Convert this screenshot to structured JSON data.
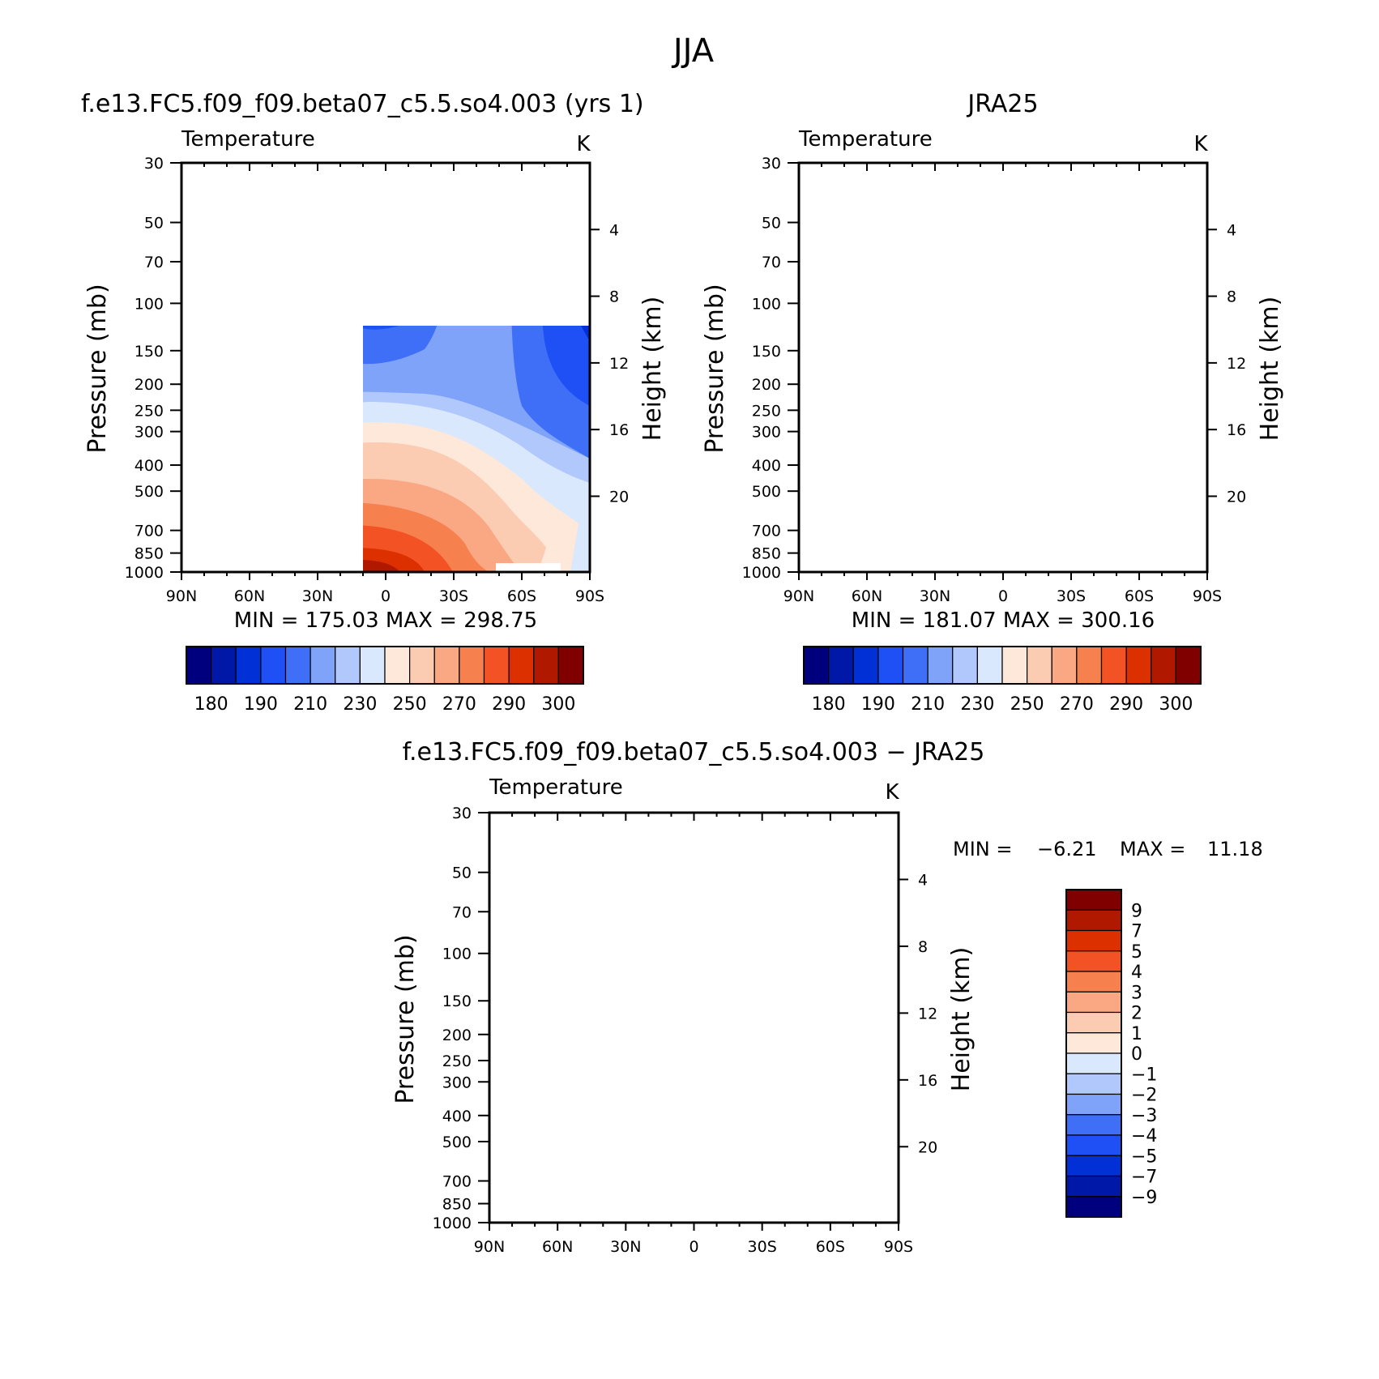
{
  "figure": {
    "title": "JJA",
    "panel_top_left": {
      "title": "f.e13.FC5.f09_f09.beta07_c5.5.so4.003 (yrs 1)"
    },
    "panel_top_right": {
      "title": "JRA25"
    },
    "panel_bottom": {
      "title": "f.e13.FC5.f09_f09.beta07_c5.5.so4.003 − JRA25"
    }
  },
  "colors": {
    "temperature_scale": [
      "#00007f",
      "#0018a8",
      "#0030d6",
      "#1f50f5",
      "#3f6ff7",
      "#7fa3f9",
      "#b0c8fb",
      "#d9e8fd",
      "#fde8d9",
      "#fbcbb2",
      "#f9a883",
      "#f7804f",
      "#f35225",
      "#dc3000",
      "#b01800",
      "#800000"
    ],
    "difference_scale": [
      "#00007f",
      "#0018a8",
      "#0030d6",
      "#1f50f5",
      "#3f6ff7",
      "#7fa3f9",
      "#b0c8fb",
      "#d9e8fd",
      "#fde8d9",
      "#fbcbb2",
      "#f9a883",
      "#f7804f",
      "#f35225",
      "#dc3000",
      "#b01800",
      "#800000"
    ]
  },
  "chart_data": [
    {
      "type": "heatmap",
      "panel": "model",
      "title": "f.e13.FC5.f09_f09.beta07_c5.5.so4.003 (yrs 1)",
      "subtitle_left": "Temperature",
      "units": "K",
      "ylabel": "Pressure (mb)",
      "ylabel_right": "Height (km)",
      "x_ticks": [
        "90N",
        "60N",
        "30N",
        "0",
        "30S",
        "60S",
        "90S"
      ],
      "y_ticks": [
        "30",
        "50",
        "70",
        "100",
        "150",
        "200",
        "250",
        "300",
        "400",
        "500",
        "700",
        "850",
        "1000"
      ],
      "y_right_ticks": [
        "20",
        "16",
        "12",
        "8",
        "4"
      ],
      "stats": "MIN = 175.03 MAX = 298.75",
      "min": 175.03,
      "max": 298.75,
      "colorbar_labels": [
        "180",
        "190",
        "210",
        "230",
        "250",
        "270",
        "290",
        "300"
      ],
      "contour_levels": [
        180,
        185,
        190,
        200,
        210,
        220,
        230,
        240,
        250,
        260,
        270,
        280,
        290,
        295,
        300
      ],
      "grid": false
    },
    {
      "type": "heatmap",
      "panel": "reanalysis",
      "title": "JRA25",
      "subtitle_left": "Temperature",
      "units": "K",
      "ylabel": "Pressure (mb)",
      "ylabel_right": "Height (km)",
      "x_ticks": [
        "90N",
        "60N",
        "30N",
        "0",
        "30S",
        "60S",
        "90S"
      ],
      "y_ticks": [
        "30",
        "50",
        "70",
        "100",
        "150",
        "200",
        "250",
        "300",
        "400",
        "500",
        "700",
        "850",
        "1000"
      ],
      "y_right_ticks": [
        "20",
        "16",
        "12",
        "8",
        "4"
      ],
      "stats": "MIN = 181.07 MAX = 300.16",
      "min": 181.07,
      "max": 300.16,
      "colorbar_labels": [
        "180",
        "190",
        "210",
        "230",
        "250",
        "270",
        "290",
        "300"
      ],
      "contour_levels": [
        180,
        185,
        190,
        200,
        210,
        220,
        230,
        240,
        250,
        260,
        270,
        280,
        290,
        295,
        300
      ],
      "grid": false
    },
    {
      "type": "heatmap",
      "panel": "difference",
      "title": "f.e13.FC5.f09_f09.beta07_c5.5.so4.003 − JRA25",
      "subtitle_left": "Temperature",
      "units": "K",
      "ylabel": "Pressure (mb)",
      "ylabel_right": "Height (km)",
      "x_ticks": [
        "90N",
        "60N",
        "30N",
        "0",
        "30S",
        "60S",
        "90S"
      ],
      "y_ticks": [
        "30",
        "50",
        "70",
        "100",
        "150",
        "200",
        "250",
        "300",
        "400",
        "500",
        "700",
        "850",
        "1000"
      ],
      "y_right_ticks": [
        "20",
        "16",
        "12",
        "8",
        "4"
      ],
      "stats_min_label": "MIN =",
      "stats_min_value": "−6.21",
      "stats_max_label": "MAX =",
      "stats_max_value": "11.18",
      "min": -6.21,
      "max": 11.18,
      "colorbar_labels": [
        "9",
        "7",
        "5",
        "4",
        "3",
        "2",
        "1",
        "0",
        "−1",
        "−2",
        "−3",
        "−4",
        "−5",
        "−7",
        "−9"
      ],
      "contour_levels": [
        -9,
        -7,
        -5,
        -4,
        -3,
        -2,
        -1,
        0,
        1,
        2,
        3,
        4,
        5,
        7,
        9
      ],
      "grid": false
    }
  ]
}
